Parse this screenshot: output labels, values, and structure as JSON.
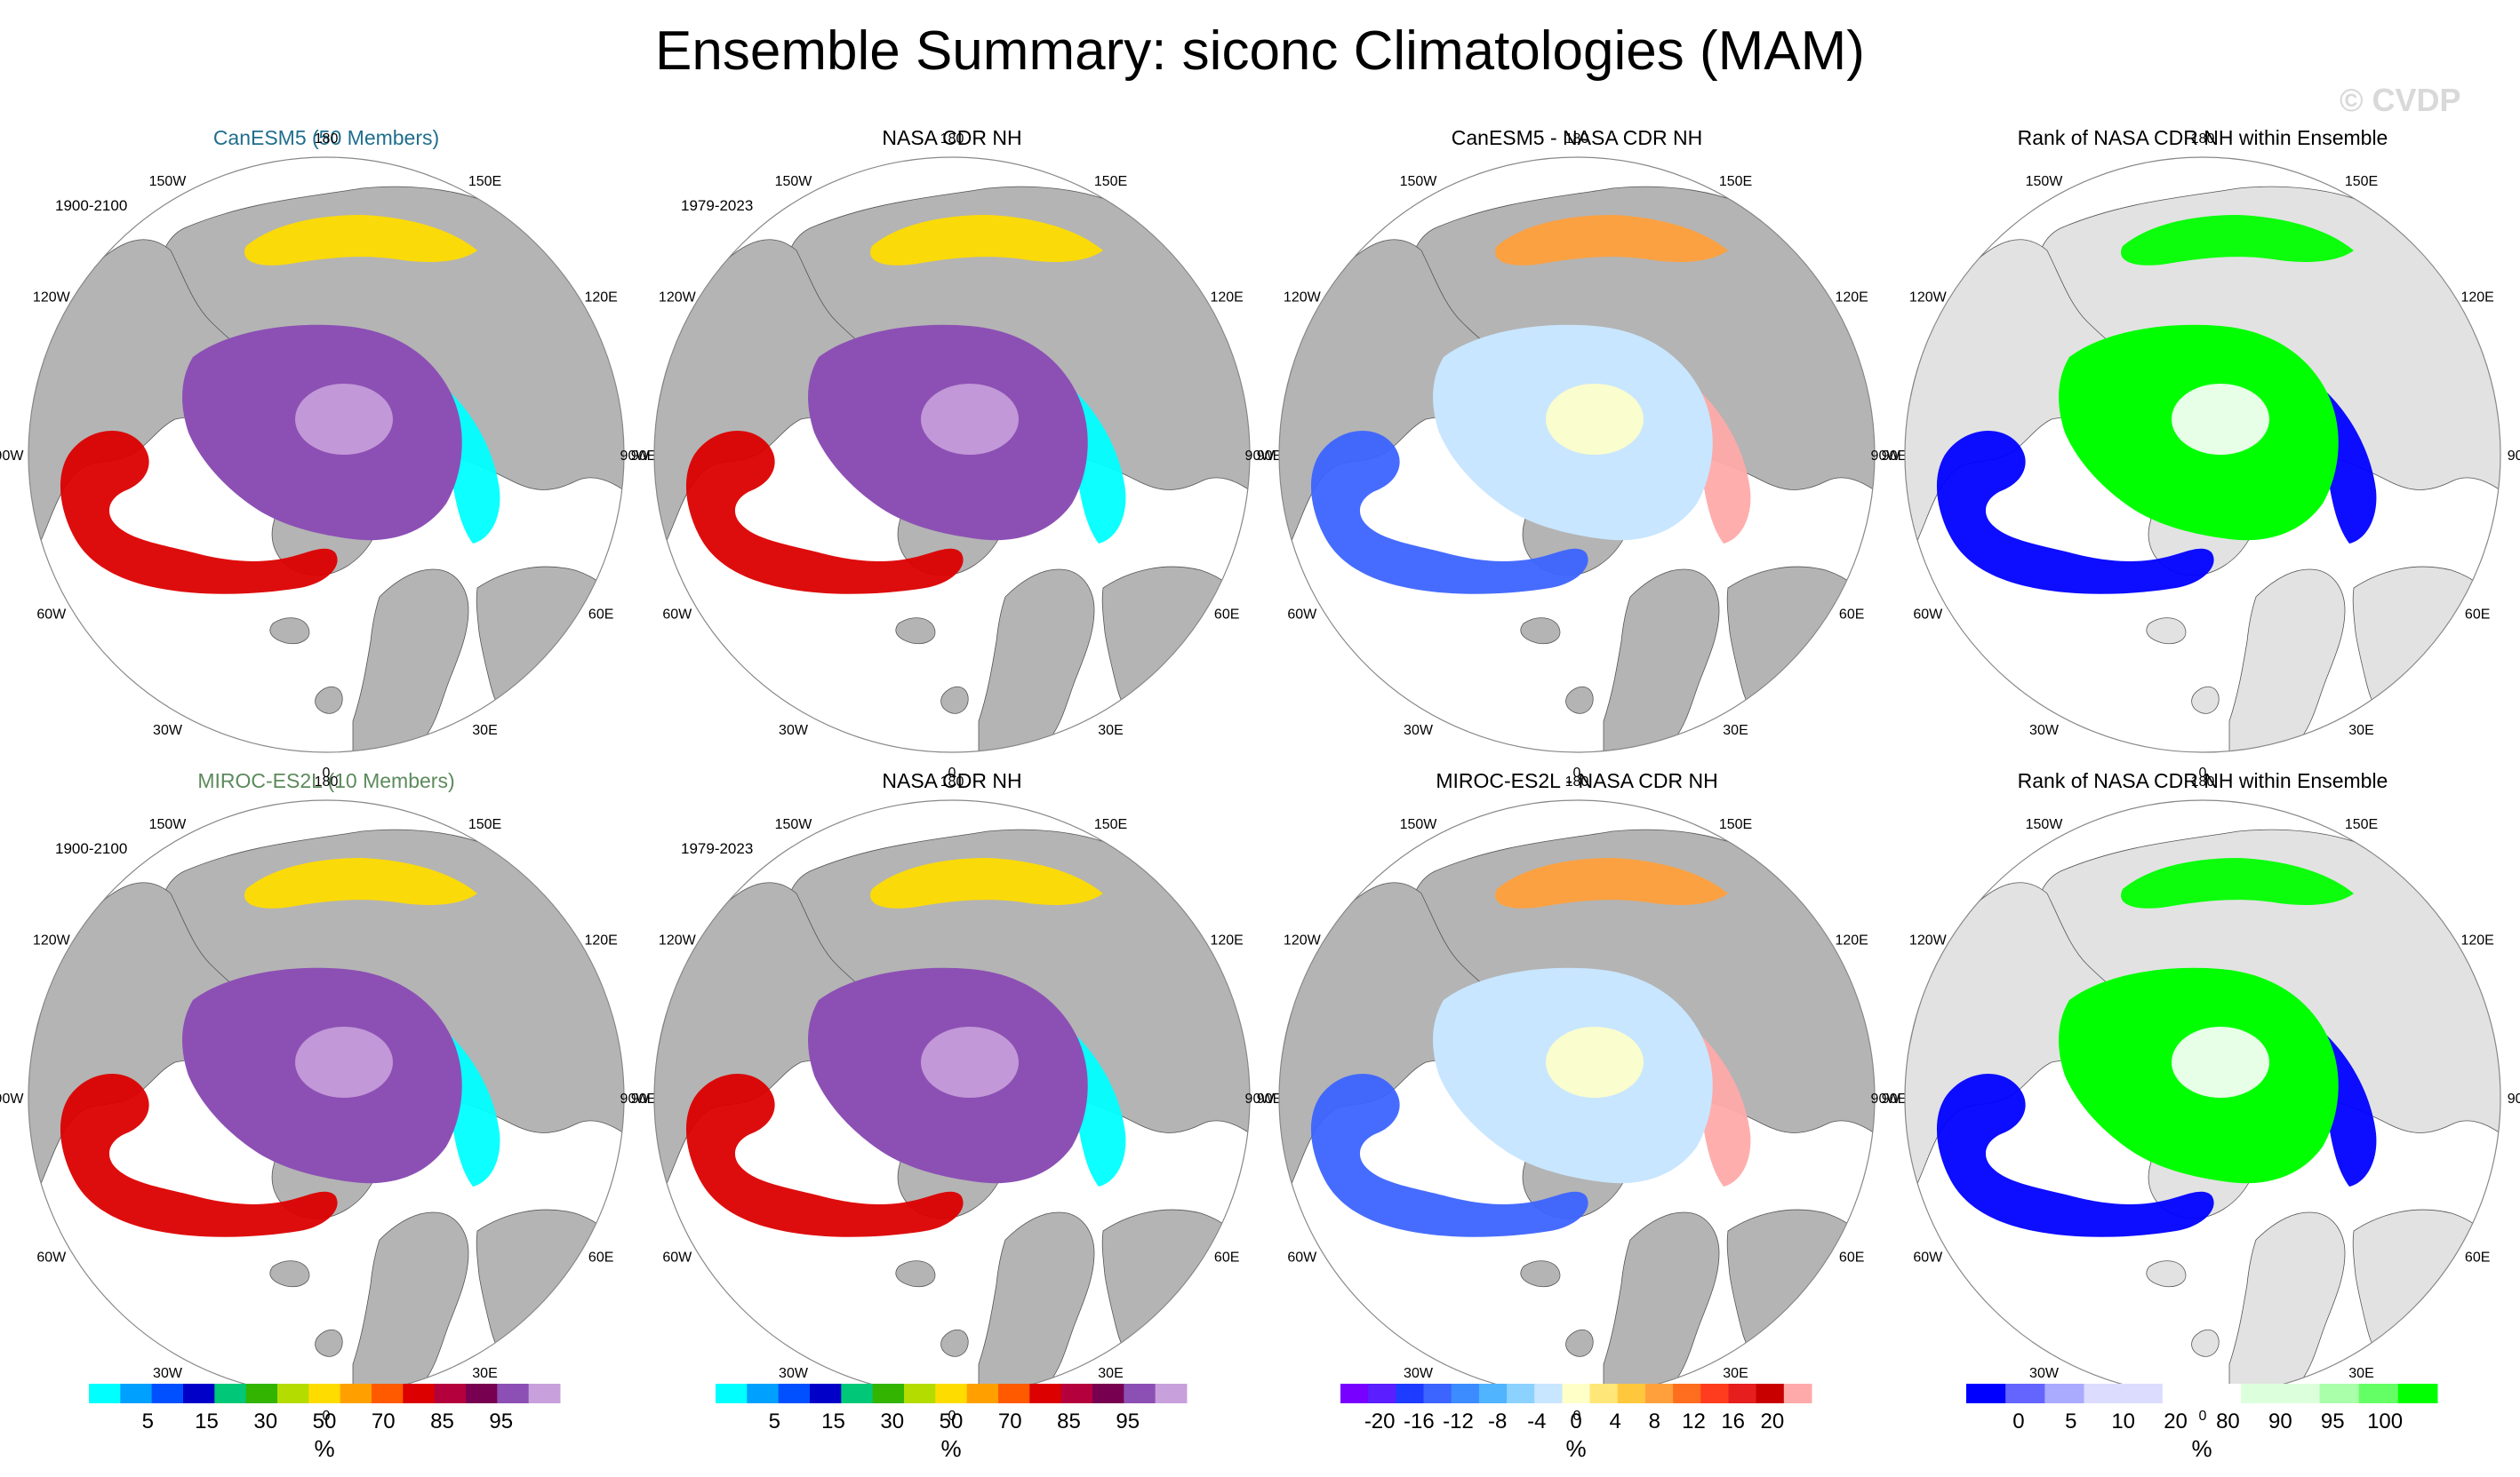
{
  "title": "Ensemble Summary: siconc Climatologies (MAM)",
  "watermark": "© CVDP",
  "colors": {
    "land": "#b4b4b4",
    "model_title_row1": "#1f6e8c",
    "model_title_row2": "#5c8a5c",
    "rank_land": "#e2e2e2"
  },
  "panels": [
    {
      "id": "r1c1",
      "title": "CanESM5 (50 Members)",
      "title_color": "#1f6e8c",
      "years": "1900-2100",
      "kind": "conc"
    },
    {
      "id": "r1c2",
      "title": "NASA CDR NH",
      "title_color": "#000000",
      "years": "1979-2023",
      "kind": "conc"
    },
    {
      "id": "r1c3",
      "title": "CanESM5 - NASA CDR NH",
      "title_color": "#000000",
      "years": "",
      "kind": "diff"
    },
    {
      "id": "r1c4",
      "title": "Rank of NASA CDR NH within Ensemble",
      "title_color": "#000000",
      "years": "",
      "kind": "rank"
    },
    {
      "id": "r2c1",
      "title": "MIROC-ES2L (10 Members)",
      "title_color": "#5c8a5c",
      "years": "1900-2100",
      "kind": "conc"
    },
    {
      "id": "r2c2",
      "title": "NASA CDR NH",
      "title_color": "#000000",
      "years": "1979-2023",
      "kind": "conc"
    },
    {
      "id": "r2c3",
      "title": "MIROC-ES2L - NASA CDR NH",
      "title_color": "#000000",
      "years": "",
      "kind": "diff"
    },
    {
      "id": "r2c4",
      "title": "Rank of NASA CDR NH within Ensemble",
      "title_color": "#000000",
      "years": "",
      "kind": "rank"
    }
  ],
  "longitude_labels": [
    "180",
    "150E",
    "120E",
    "90E",
    "60E",
    "30E",
    "0",
    "30W",
    "60W",
    "90W",
    "120W",
    "150W"
  ],
  "colorbars": [
    {
      "id": "conc-1",
      "unit": "%",
      "colors": [
        "#00ffff",
        "#00a0ff",
        "#0050ff",
        "#0000c8",
        "#00c878",
        "#32b400",
        "#b4dc00",
        "#ffdc00",
        "#ffa000",
        "#ff5a00",
        "#dc0000",
        "#b4003c",
        "#780050",
        "#8c50b4",
        "#c8a0dc"
      ],
      "labels": [
        "5",
        "15",
        "30",
        "50",
        "70",
        "85",
        "95"
      ]
    },
    {
      "id": "conc-2",
      "unit": "%",
      "colors": [
        "#00ffff",
        "#00a0ff",
        "#0050ff",
        "#0000c8",
        "#00c878",
        "#32b400",
        "#b4dc00",
        "#ffdc00",
        "#ffa000",
        "#ff5a00",
        "#dc0000",
        "#b4003c",
        "#780050",
        "#8c50b4",
        "#c8a0dc"
      ],
      "labels": [
        "5",
        "15",
        "30",
        "50",
        "70",
        "85",
        "95"
      ]
    },
    {
      "id": "diff",
      "unit": "%",
      "colors": [
        "#7800ff",
        "#5a1eff",
        "#1e3cff",
        "#3c64ff",
        "#3c8cff",
        "#50b4ff",
        "#8cd2ff",
        "#c8e6ff",
        "#ffffc8",
        "#ffe678",
        "#ffc83c",
        "#ffa03c",
        "#ff6e1e",
        "#ff3c1e",
        "#e61e1e",
        "#c80000",
        "#ffaaaa"
      ],
      "labels": [
        "-20",
        "-16",
        "-12",
        "-8",
        "-4",
        "0",
        "4",
        "8",
        "12",
        "16",
        "20"
      ]
    },
    {
      "id": "rank",
      "unit": "%",
      "colors": [
        "#0000ff",
        "#6464ff",
        "#aaaaff",
        "#dcdcff",
        "#dcdcff",
        "#ffffff",
        "#ffffff",
        "#dcffdc",
        "#dcffdc",
        "#aaffaa",
        "#64ff64",
        "#00ff00"
      ],
      "labels": [
        "0",
        "5",
        "10",
        "20",
        "80",
        "90",
        "95",
        "100"
      ]
    }
  ]
}
